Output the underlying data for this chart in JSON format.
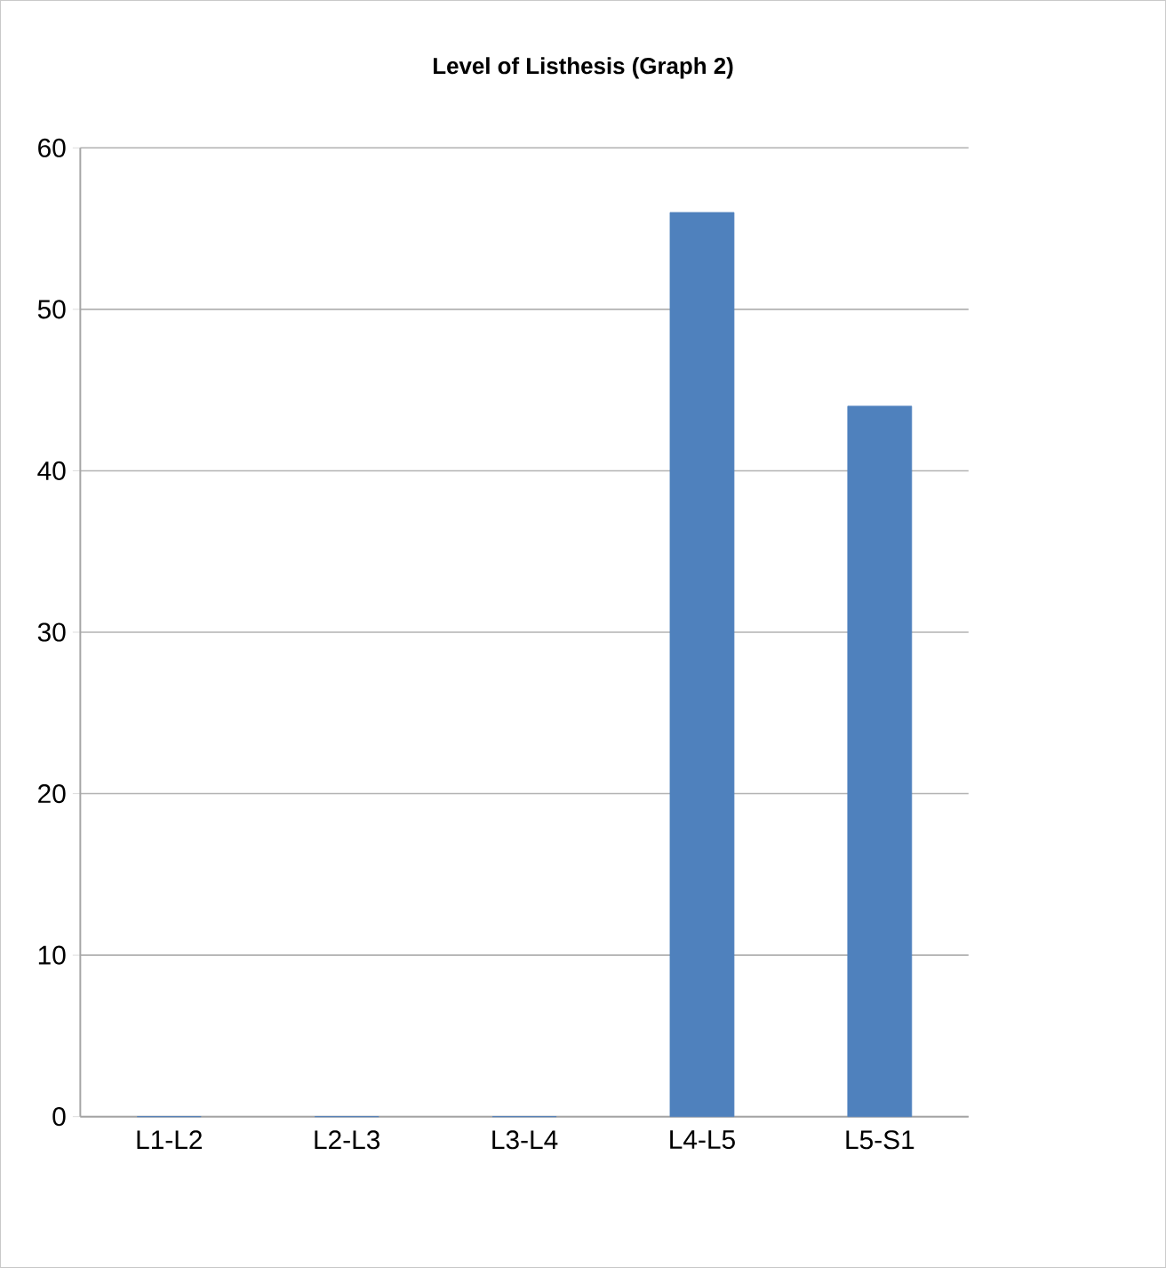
{
  "chart_data": {
    "type": "bar",
    "title": "Level of Listhesis (Graph 2)",
    "categories": [
      "L1-L2",
      "L2-L3",
      "L3-L4",
      "L4-L5",
      "L5-S1"
    ],
    "values": [
      0,
      0,
      0,
      56,
      44
    ],
    "color": "#4f81bd",
    "ylim": [
      0,
      60
    ],
    "yticks": [
      0,
      10,
      20,
      30,
      40,
      50,
      60
    ],
    "grid": "y"
  }
}
